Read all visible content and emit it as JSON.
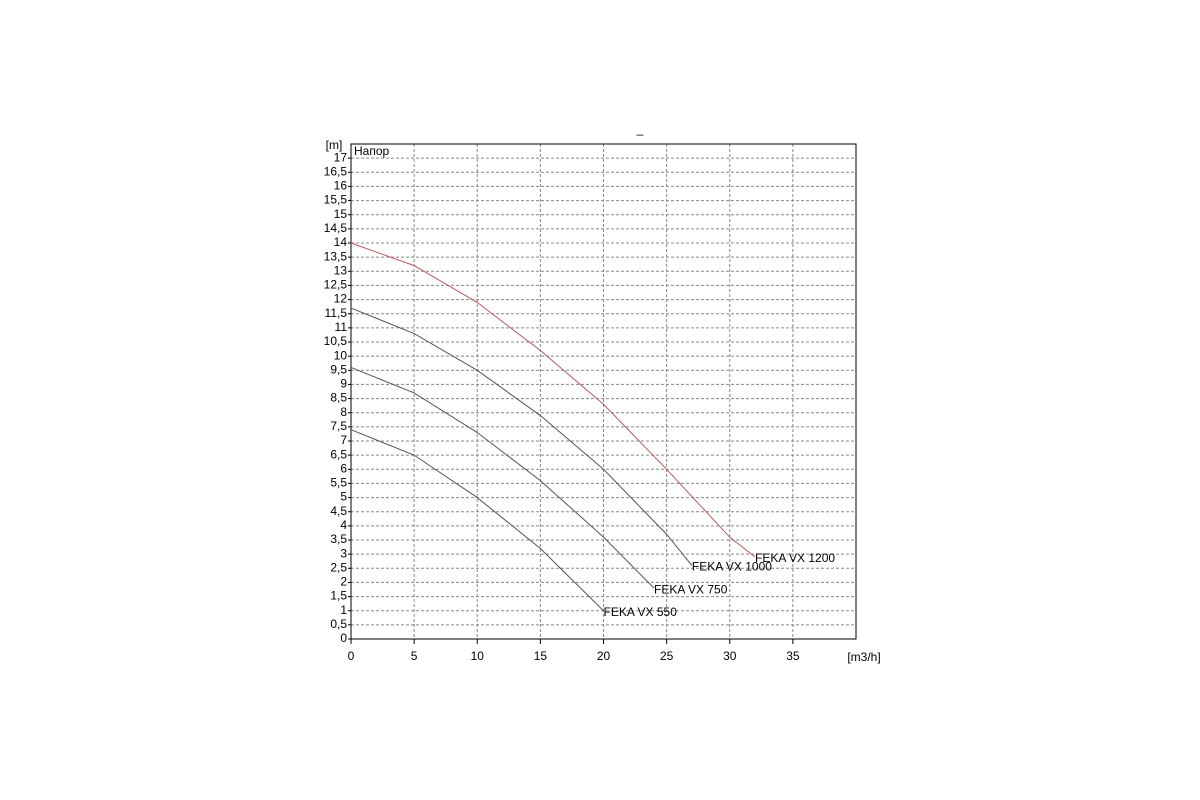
{
  "chart_data": {
    "type": "line",
    "title": "_",
    "x_label": "[m3/h]",
    "y_label": "[m]",
    "annotation": "Напор",
    "xlim": [
      0,
      40
    ],
    "ylim": [
      0,
      17.5
    ],
    "xticks": [
      0,
      5,
      10,
      15,
      20,
      25,
      30,
      35
    ],
    "yticks": [
      0,
      {
        "value": 0.5,
        "label": "0,5"
      },
      1,
      {
        "value": 1.5,
        "label": "1,5"
      },
      2,
      {
        "value": 2.5,
        "label": "2,5"
      },
      3,
      {
        "value": 3.5,
        "label": "3,5"
      },
      4,
      {
        "value": 4.5,
        "label": "4,5"
      },
      5,
      {
        "value": 5.5,
        "label": "5,5"
      },
      6,
      {
        "value": 6.5,
        "label": "6,5"
      },
      7,
      {
        "value": 7.5,
        "label": "7,5"
      },
      8,
      {
        "value": 8.5,
        "label": "8,5"
      },
      9,
      {
        "value": 9.5,
        "label": "9,5"
      },
      10,
      {
        "value": 10.5,
        "label": "10,5"
      },
      11,
      {
        "value": 11.5,
        "label": "11,5"
      },
      12,
      {
        "value": 12.5,
        "label": "12,5"
      },
      13,
      {
        "value": 13.5,
        "label": "13,5"
      },
      14,
      {
        "value": 14.5,
        "label": "14,5"
      },
      15,
      {
        "value": 15.5,
        "label": "15,5"
      },
      16,
      {
        "value": 16.5,
        "label": "16,5"
      },
      17
    ],
    "grid": true,
    "series": [
      {
        "name": "FEKA VX 1200",
        "color": "#b85a5a",
        "x": [
          0,
          5,
          10,
          15,
          20,
          25,
          30,
          32
        ],
        "values": [
          14,
          13.2,
          11.9,
          10.2,
          8.3,
          6.0,
          3.6,
          2.9
        ]
      },
      {
        "name": "FEKA VX 1000",
        "color": "#555555",
        "x": [
          0,
          5,
          10,
          15,
          20,
          25,
          27
        ],
        "values": [
          11.7,
          10.8,
          9.5,
          7.9,
          6.0,
          3.7,
          2.6
        ]
      },
      {
        "name": "FEKA VX 750",
        "color": "#555555",
        "x": [
          0,
          5,
          10,
          15,
          20,
          24
        ],
        "values": [
          9.6,
          8.7,
          7.3,
          5.6,
          3.6,
          1.8
        ]
      },
      {
        "name": "FEKA VX 550",
        "color": "#555555",
        "x": [
          0,
          5,
          10,
          15,
          20
        ],
        "values": [
          7.4,
          6.5,
          5.0,
          3.2,
          1.0
        ]
      }
    ]
  }
}
